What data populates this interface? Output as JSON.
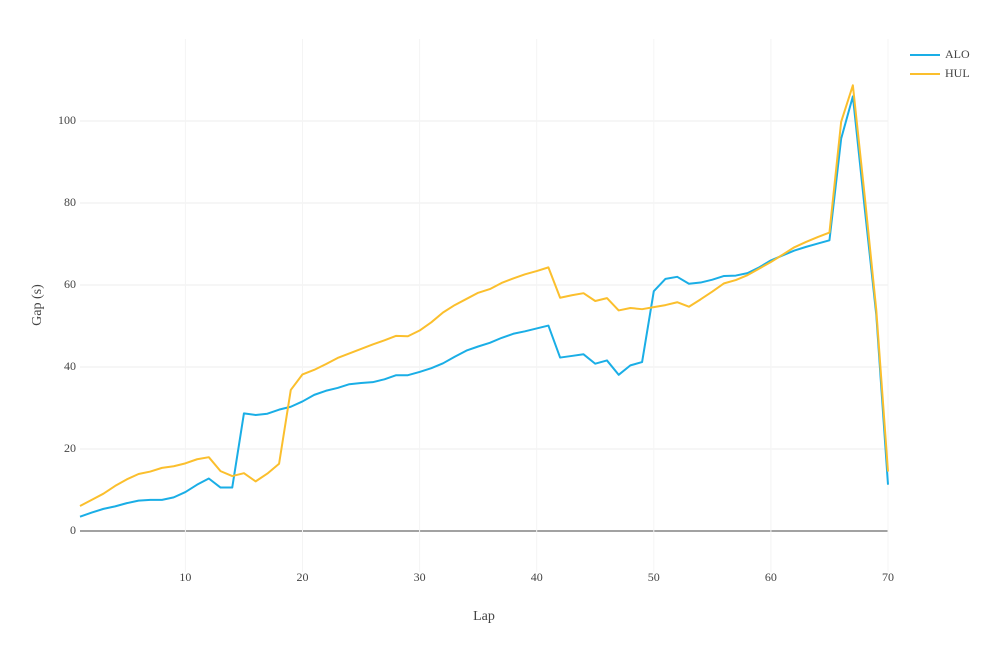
{
  "chart_data": {
    "type": "line",
    "xlabel": "Lap",
    "ylabel": "Gap (s)",
    "x": [
      1,
      2,
      3,
      4,
      5,
      6,
      7,
      8,
      9,
      10,
      11,
      12,
      13,
      14,
      15,
      16,
      17,
      18,
      19,
      20,
      21,
      22,
      23,
      24,
      25,
      26,
      27,
      28,
      29,
      30,
      31,
      32,
      33,
      34,
      35,
      36,
      37,
      38,
      39,
      40,
      41,
      42,
      43,
      44,
      45,
      46,
      47,
      48,
      49,
      50,
      51,
      52,
      53,
      54,
      55,
      56,
      57,
      58,
      59,
      60,
      61,
      62,
      63,
      64,
      65,
      66,
      67,
      68,
      69,
      70
    ],
    "series": [
      {
        "name": "ALO",
        "color": "#1aaee6",
        "values": [
          3.5,
          4.5,
          5.4,
          6.0,
          6.8,
          7.4,
          7.6,
          7.6,
          8.2,
          9.5,
          11.3,
          12.8,
          10.6,
          10.6,
          28.7,
          28.3,
          28.6,
          29.6,
          30.3,
          31.6,
          33.2,
          34.2,
          34.9,
          35.8,
          36.1,
          36.3,
          37.0,
          38.0,
          38.0,
          38.8,
          39.7,
          40.9,
          42.5,
          44.0,
          45.0,
          45.9,
          47.1,
          48.1,
          48.7,
          49.4,
          50.1,
          42.3,
          42.7,
          43.1,
          40.8,
          41.6,
          38.1,
          40.4,
          41.2,
          58.5,
          61.5,
          62.0,
          60.3,
          60.6,
          61.3,
          62.2,
          62.3,
          62.9,
          64.3,
          66.0,
          67.2,
          68.4,
          69.3,
          70.1,
          70.9,
          95.7,
          106.0,
          79.0,
          52.7,
          11.3
        ]
      },
      {
        "name": "HUL",
        "color": "#fbbf2d",
        "values": [
          6.1,
          7.6,
          9.1,
          11.0,
          12.6,
          13.9,
          14.5,
          15.4,
          15.8,
          16.5,
          17.5,
          18.0,
          14.6,
          13.4,
          14.1,
          12.1,
          14.0,
          16.4,
          34.4,
          38.2,
          39.3,
          40.7,
          42.2,
          43.3,
          44.4,
          45.5,
          46.5,
          47.6,
          47.5,
          48.9,
          50.9,
          53.3,
          55.1,
          56.6,
          58.1,
          59.0,
          60.5,
          61.6,
          62.6,
          63.4,
          64.3,
          56.9,
          57.5,
          58.0,
          56.1,
          56.8,
          53.8,
          54.4,
          54.1,
          54.6,
          55.1,
          55.8,
          54.7,
          56.5,
          58.4,
          60.4,
          61.2,
          62.4,
          64.0,
          65.6,
          67.4,
          69.2,
          70.5,
          71.7,
          72.8,
          99.8,
          108.7,
          82.0,
          53.9,
          14.5
        ]
      }
    ],
    "xlim": [
      1,
      70
    ],
    "xticks": [
      10,
      20,
      30,
      40,
      50,
      60,
      70
    ],
    "ylim": [
      -10,
      120
    ],
    "yticks": [
      0,
      20,
      40,
      60,
      80,
      100
    ],
    "grid": true,
    "legend": "top-right"
  }
}
